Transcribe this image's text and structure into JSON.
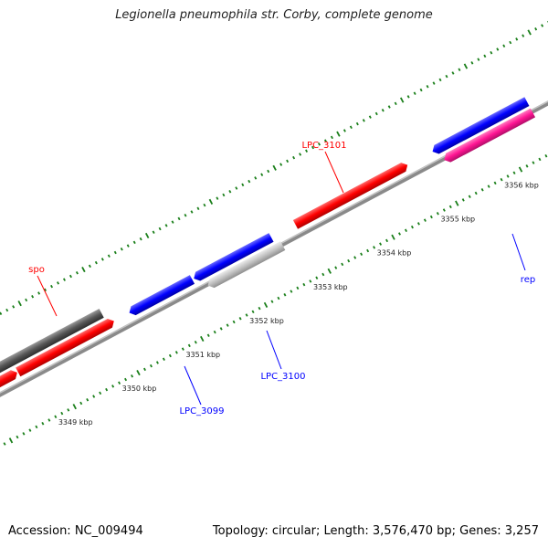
{
  "title": "Legionella pneumophila str. Corby, complete genome",
  "footer": {
    "accession": "Accession: NC_009494",
    "stats": "Topology: circular; Length: 3,576,470 bp; Genes: 3,257"
  },
  "colors": {
    "red": "#ff0000",
    "blue": "#0000ff",
    "dark_gray": "#555555",
    "light_gray": "#c0c0c0",
    "pink": "#ff1493",
    "tick_green": "#1a7f1a",
    "backbone": "#888888"
  },
  "ruler": {
    "unit": "kbp",
    "labels": [
      {
        "kbp": 3349,
        "text": "3349 kbp"
      },
      {
        "kbp": 3350,
        "text": "3350 kbp"
      },
      {
        "kbp": 3351,
        "text": "3351 kbp"
      },
      {
        "kbp": 3352,
        "text": "3352 kbp"
      },
      {
        "kbp": 3353,
        "text": "3353 kbp"
      },
      {
        "kbp": 3354,
        "text": "3354 kbp"
      },
      {
        "kbp": 3355,
        "text": "3355 kbp"
      },
      {
        "kbp": 3356,
        "text": "3356 kbp"
      }
    ]
  },
  "gene_labels": [
    {
      "name": "LPC_3101",
      "color": "#ff0000"
    },
    {
      "name": "spo",
      "color": "#ff0000"
    },
    {
      "name": "LPC_3099",
      "color": "#0000ff"
    },
    {
      "name": "LPC_3100",
      "color": "#0000ff"
    },
    {
      "name": "rep",
      "color": "#0000ff"
    }
  ]
}
